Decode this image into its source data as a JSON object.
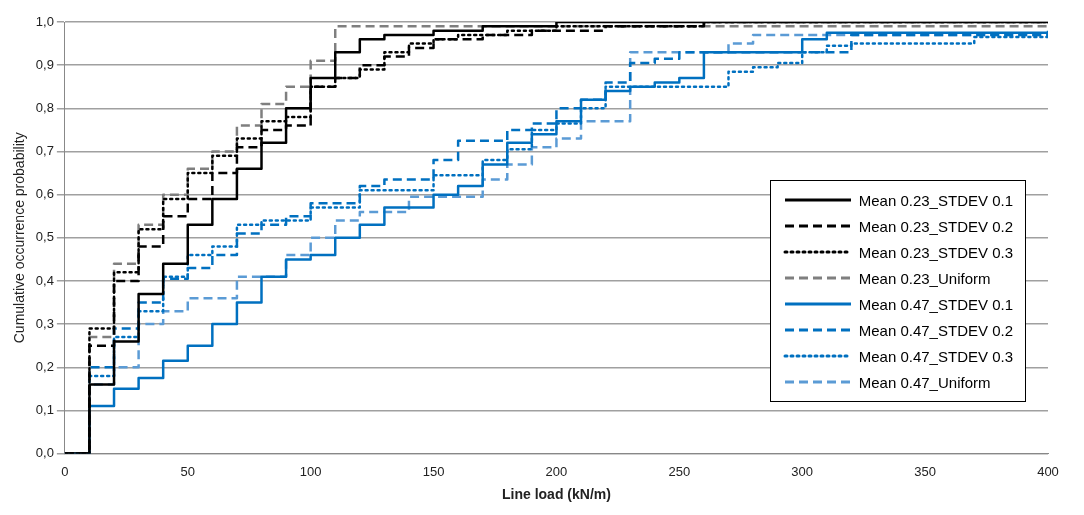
{
  "chart_data": {
    "type": "step",
    "xlabel": "Line load (kN/m)",
    "ylabel": "Cumulative occurrence probability",
    "xlim": [
      0,
      400
    ],
    "xticks": [
      0,
      50,
      100,
      150,
      200,
      250,
      300,
      350,
      400
    ],
    "ylim": [
      0,
      1
    ],
    "yticks": [
      {
        "value": 0,
        "label": "0,0"
      },
      {
        "value": 0.1,
        "label": "0,1"
      },
      {
        "value": 0.2,
        "label": "0,2"
      },
      {
        "value": 0.3,
        "label": "0,3"
      },
      {
        "value": 0.4,
        "label": "0,4"
      },
      {
        "value": 0.5,
        "label": "0,5"
      },
      {
        "value": 0.6,
        "label": "0,6"
      },
      {
        "value": 0.7,
        "label": "0,7"
      },
      {
        "value": 0.8,
        "label": "0,8"
      },
      {
        "value": 0.9,
        "label": "0,9"
      },
      {
        "value": 1,
        "label": "1,0"
      }
    ],
    "grid": "y",
    "legend": "right",
    "marker": "none",
    "series": [
      {
        "name": "Mean 0.23_STDEV 0.1",
        "color": "#000000",
        "line_style": "solid",
        "x": [
          0,
          10,
          20,
          30,
          40,
          50,
          60,
          70,
          80,
          90,
          100,
          110,
          120,
          130,
          150,
          170,
          200,
          400
        ],
        "values": [
          0,
          0.16,
          0.26,
          0.37,
          0.44,
          0.53,
          0.59,
          0.66,
          0.72,
          0.8,
          0.87,
          0.93,
          0.96,
          0.97,
          0.98,
          0.99,
          1,
          1
        ]
      },
      {
        "name": "Mean 0.23_STDEV 0.2",
        "color": "#000000",
        "line_style": "dashed",
        "x": [
          0,
          10,
          20,
          30,
          40,
          50,
          60,
          70,
          80,
          90,
          100,
          110,
          120,
          130,
          140,
          150,
          170,
          190,
          220,
          260,
          400
        ],
        "values": [
          0,
          0.25,
          0.4,
          0.48,
          0.55,
          0.59,
          0.65,
          0.71,
          0.75,
          0.76,
          0.85,
          0.87,
          0.9,
          0.92,
          0.94,
          0.96,
          0.97,
          0.98,
          0.99,
          1,
          1
        ]
      },
      {
        "name": "Mean 0.23_STDEV 0.3",
        "color": "#000000",
        "line_style": "dotted",
        "x": [
          0,
          10,
          20,
          30,
          40,
          50,
          60,
          70,
          80,
          90,
          100,
          110,
          120,
          130,
          140,
          150,
          160,
          180,
          200,
          260,
          400
        ],
        "values": [
          0,
          0.29,
          0.42,
          0.52,
          0.59,
          0.65,
          0.69,
          0.73,
          0.77,
          0.78,
          0.85,
          0.87,
          0.89,
          0.93,
          0.95,
          0.96,
          0.97,
          0.98,
          0.99,
          1,
          1
        ]
      },
      {
        "name": "Mean 0.23_Uniform",
        "color": "#7f7f7f",
        "line_style": "dashed",
        "x": [
          0,
          10,
          20,
          30,
          40,
          50,
          60,
          70,
          80,
          90,
          100,
          110,
          400
        ],
        "values": [
          0,
          0.27,
          0.44,
          0.53,
          0.6,
          0.66,
          0.7,
          0.76,
          0.81,
          0.85,
          0.91,
          0.99,
          0.99
        ]
      },
      {
        "name": "Mean 0.47_STDEV 0.1",
        "color": "#0070c0",
        "line_style": "solid",
        "x": [
          0,
          10,
          20,
          30,
          40,
          50,
          60,
          70,
          80,
          90,
          100,
          110,
          120,
          130,
          150,
          160,
          170,
          180,
          190,
          200,
          210,
          220,
          230,
          240,
          250,
          260,
          300,
          310,
          400
        ],
        "values": [
          0,
          0.11,
          0.15,
          0.175,
          0.215,
          0.25,
          0.3,
          0.35,
          0.41,
          0.45,
          0.46,
          0.5,
          0.53,
          0.57,
          0.6,
          0.62,
          0.67,
          0.72,
          0.74,
          0.77,
          0.82,
          0.84,
          0.85,
          0.86,
          0.87,
          0.93,
          0.96,
          0.975,
          0.98
        ]
      },
      {
        "name": "Mean 0.47_STDEV 0.2",
        "color": "#0070c0",
        "line_style": "dashed",
        "x": [
          0,
          10,
          20,
          30,
          40,
          50,
          60,
          70,
          80,
          90,
          100,
          120,
          130,
          150,
          160,
          180,
          190,
          200,
          210,
          220,
          230,
          240,
          250,
          320,
          400
        ],
        "values": [
          0,
          0.2,
          0.29,
          0.35,
          0.405,
          0.43,
          0.46,
          0.51,
          0.53,
          0.55,
          0.58,
          0.62,
          0.635,
          0.68,
          0.725,
          0.75,
          0.765,
          0.8,
          0.82,
          0.86,
          0.905,
          0.915,
          0.93,
          0.97,
          0.975
        ]
      },
      {
        "name": "Mean 0.47_STDEV 0.3",
        "color": "#0070c0",
        "line_style": "dotted",
        "x": [
          0,
          10,
          20,
          30,
          40,
          50,
          60,
          70,
          80,
          100,
          120,
          150,
          170,
          180,
          190,
          200,
          210,
          220,
          270,
          280,
          290,
          300,
          310,
          320,
          370,
          400
        ],
        "values": [
          0,
          0.18,
          0.27,
          0.33,
          0.41,
          0.46,
          0.48,
          0.53,
          0.54,
          0.57,
          0.61,
          0.645,
          0.68,
          0.705,
          0.75,
          0.765,
          0.8,
          0.85,
          0.885,
          0.895,
          0.905,
          0.93,
          0.945,
          0.95,
          0.965,
          0.965
        ]
      },
      {
        "name": "Mean 0.47_Uniform",
        "color": "#5b9bd5",
        "line_style": "dashed",
        "x": [
          0,
          10,
          20,
          30,
          40,
          50,
          70,
          90,
          100,
          110,
          120,
          140,
          170,
          180,
          190,
          200,
          210,
          230,
          270,
          280,
          400
        ],
        "values": [
          0,
          0.16,
          0.2,
          0.3,
          0.33,
          0.36,
          0.41,
          0.46,
          0.5,
          0.54,
          0.56,
          0.595,
          0.635,
          0.67,
          0.71,
          0.73,
          0.77,
          0.93,
          0.95,
          0.97,
          0.97
        ]
      }
    ]
  }
}
